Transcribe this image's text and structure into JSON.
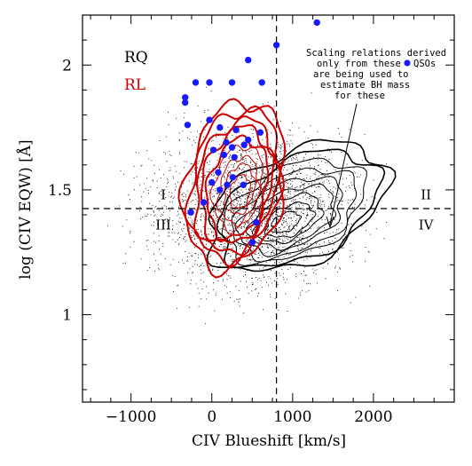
{
  "chart_data": {
    "type": "scatter",
    "xlabel": "CIV Blueshift [km/s]",
    "ylabel": "log (CIV EQW) [Å]",
    "xlim": [
      -1600,
      3000
    ],
    "ylim": [
      0.65,
      2.2
    ],
    "x_ticks": [
      -1000,
      0,
      1000,
      2000
    ],
    "x_tick_labels": [
      "−1000",
      "0",
      "1000",
      "2000"
    ],
    "y_ticks": [
      1.0,
      1.5,
      2.0
    ],
    "y_tick_labels": [
      "1",
      "1.5",
      "2"
    ],
    "grid": false,
    "reference_lines": {
      "x": 800,
      "y": 1.425,
      "style": "dashed"
    },
    "legend": {
      "placement": "top-left",
      "entries": [
        {
          "label": "RQ",
          "color": "#000000"
        },
        {
          "label": "RL",
          "color": "#cc0000"
        }
      ]
    },
    "quadrant_labels": [
      {
        "text": "I",
        "x": -600,
        "y": 1.48
      },
      {
        "text": "II",
        "x": 2650,
        "y": 1.48
      },
      {
        "text": "III",
        "x": -600,
        "y": 1.36
      },
      {
        "text": "IV",
        "x": 2650,
        "y": 1.36
      }
    ],
    "annotation": {
      "lines": [
        "Scaling relations derived",
        "only from these",
        "are being used to",
        "estimate BH mass",
        "for these"
      ],
      "marker_label": "QSOs",
      "arrow_target": [
        1500,
        1.33
      ]
    },
    "series": [
      {
        "name": "QSOs",
        "color": "#1a1aff",
        "points": [
          [
            1300,
            2.17
          ],
          [
            800,
            2.08
          ],
          [
            450,
            2.02
          ],
          [
            620,
            1.93
          ],
          [
            -200,
            1.93
          ],
          [
            -30,
            1.93
          ],
          [
            250,
            1.93
          ],
          [
            -330,
            1.87
          ],
          [
            -330,
            1.85
          ],
          [
            -30,
            1.78
          ],
          [
            -300,
            1.76
          ],
          [
            100,
            1.75
          ],
          [
            300,
            1.74
          ],
          [
            600,
            1.73
          ],
          [
            450,
            1.7
          ],
          [
            180,
            1.69
          ],
          [
            400,
            1.68
          ],
          [
            250,
            1.67
          ],
          [
            20,
            1.66
          ],
          [
            150,
            1.64
          ],
          [
            280,
            1.63
          ],
          [
            80,
            1.57
          ],
          [
            260,
            1.55
          ],
          [
            0,
            1.53
          ],
          [
            190,
            1.52
          ],
          [
            390,
            1.52
          ],
          [
            100,
            1.5
          ],
          [
            -100,
            1.45
          ],
          [
            -260,
            1.41
          ],
          [
            550,
            1.37
          ],
          [
            500,
            1.29
          ]
        ]
      }
    ],
    "colors": {
      "rq_contour": "#000000",
      "rl_contour": "#cc0000",
      "qso_marker": "#1a1aff",
      "background_dots": "#000000"
    }
  }
}
